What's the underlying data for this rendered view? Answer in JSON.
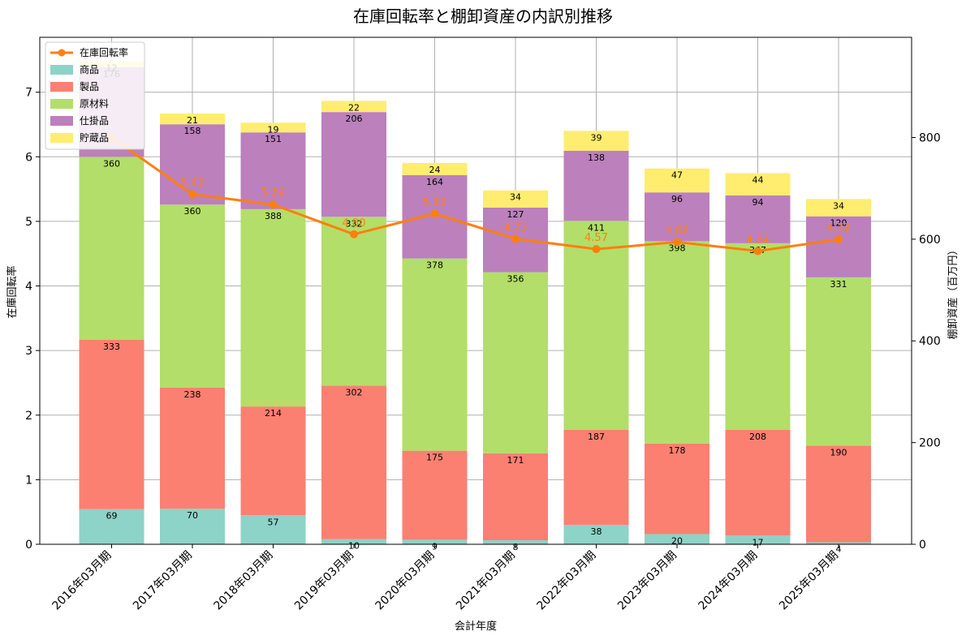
{
  "chart_data": {
    "type": "bar",
    "title": "在庫回転率と棚卸資産の内訳別推移",
    "xlabel": "会計年度",
    "ylabel": "在庫回転率",
    "ylabel_right": "棚卸資産（百万円）",
    "categories": [
      "2016年03月期",
      "2017年03月期",
      "2018年03月期",
      "2019年03月期",
      "2020年03月期",
      "2021年03月期",
      "2022年03月期",
      "2023年03月期",
      "2024年03月期",
      "2025年03月期"
    ],
    "stacked": true,
    "series": [
      {
        "name": "商品",
        "color": "#8dd3c7",
        "values": [
          69,
          70,
          57,
          10,
          9,
          8,
          38,
          20,
          17,
          4
        ]
      },
      {
        "name": "製品",
        "color": "#fb8072",
        "values": [
          333,
          238,
          214,
          302,
          175,
          171,
          187,
          178,
          208,
          190
        ]
      },
      {
        "name": "原材料",
        "color": "#b3de69",
        "values": [
          360,
          360,
          388,
          332,
          378,
          356,
          411,
          398,
          367,
          331
        ]
      },
      {
        "name": "仕掛品",
        "color": "#bc80bd",
        "values": [
          176,
          158,
          151,
          206,
          164,
          127,
          138,
          96,
          94,
          120
        ]
      },
      {
        "name": "貯蔵品",
        "color": "#ffed6f",
        "values": [
          12,
          21,
          19,
          22,
          24,
          34,
          39,
          47,
          44,
          34
        ]
      }
    ],
    "line": {
      "name": "在庫回転率",
      "color": "#ff7f0e",
      "values": [
        6.3,
        5.42,
        5.26,
        4.8,
        5.12,
        4.73,
        4.57,
        4.68,
        4.54,
        4.72
      ],
      "labels": [
        "",
        "5.42",
        "5.26",
        "4.80",
        "5.12",
        "4.73",
        "4.57",
        "4.68",
        "4.54",
        "4.72"
      ]
    },
    "ylim_left": [
      0,
      7.85
    ],
    "ylim_right": [
      0,
      997
    ],
    "yticks_left": [
      0,
      1,
      2,
      3,
      4,
      5,
      6,
      7
    ],
    "yticks_right": [
      0,
      200,
      400,
      600,
      800
    ],
    "grid": true,
    "legend": "upper-left"
  }
}
